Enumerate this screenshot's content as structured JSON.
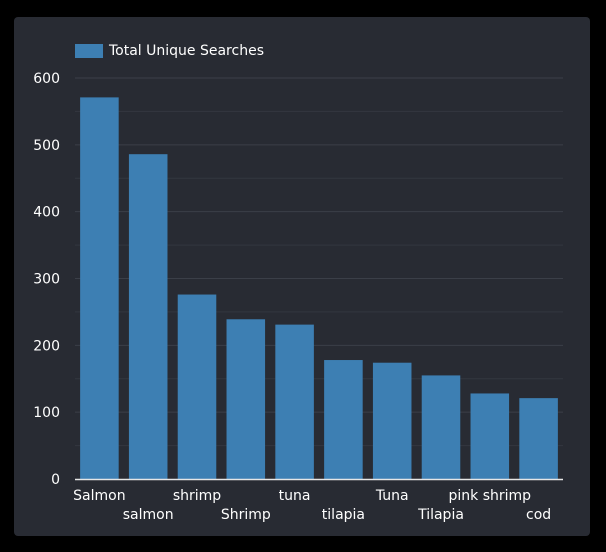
{
  "chart_data": {
    "type": "bar",
    "categories": [
      "Salmon",
      "salmon",
      "shrimp",
      "Shrimp",
      "tuna",
      "tilapia",
      "Tuna",
      "Tilapia",
      "pink shrimp",
      "cod"
    ],
    "series": [
      {
        "name": "Total Unique Searches",
        "values": [
          571,
          486,
          276,
          239,
          231,
          178,
          174,
          155,
          128,
          121
        ]
      }
    ],
    "ylim": [
      0,
      600
    ],
    "yticks": [
      0,
      100,
      200,
      300,
      400,
      500,
      600
    ],
    "grid": true,
    "legend_placement": "top-left",
    "colors": {
      "bar": "#3d7fb3",
      "background": "#282b33",
      "grid": "#3b3f48",
      "text": "#ffffff"
    }
  }
}
